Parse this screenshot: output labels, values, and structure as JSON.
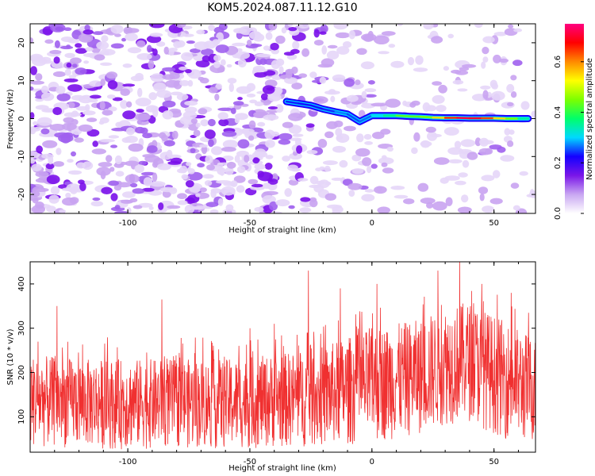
{
  "title": "KOM5.2024.087.11.12.G10",
  "chart_data": [
    {
      "type": "heatmap",
      "xlabel": "Height of straight line (km)",
      "ylabel": "Frequency (Hz)",
      "xlim": [
        -140,
        67
      ],
      "ylim": [
        -25,
        25
      ],
      "xticks": [
        -100,
        -50,
        0,
        50
      ],
      "yticks": [
        -20,
        -10,
        0,
        10,
        20
      ],
      "colorbar": {
        "label": "Normalized spectral amplitude",
        "range": [
          0.0,
          0.75
        ],
        "ticks": [
          0.0,
          0.2,
          0.4,
          0.6
        ],
        "colors": [
          "#ffffff",
          "#c9a7f2",
          "#7a16e8",
          "#1400ff",
          "#00d9ff",
          "#00ff6a",
          "#7cff00",
          "#ffff00",
          "#ff8a00",
          "#ff0000",
          "#ff0080"
        ]
      },
      "signal_track": [
        {
          "x": -35,
          "y": 4.5,
          "v": 0.25
        },
        {
          "x": -30,
          "y": 4.0,
          "v": 0.22
        },
        {
          "x": -25,
          "y": 3.5,
          "v": 0.24
        },
        {
          "x": -20,
          "y": 2.5,
          "v": 0.22
        },
        {
          "x": -15,
          "y": 1.8,
          "v": 0.26
        },
        {
          "x": -10,
          "y": 1.2,
          "v": 0.28
        },
        {
          "x": -5,
          "y": -0.8,
          "v": 0.22
        },
        {
          "x": 0,
          "y": 0.8,
          "v": 0.3
        },
        {
          "x": 5,
          "y": 0.8,
          "v": 0.32
        },
        {
          "x": 10,
          "y": 0.8,
          "v": 0.4
        },
        {
          "x": 15,
          "y": 0.6,
          "v": 0.45
        },
        {
          "x": 20,
          "y": 0.5,
          "v": 0.4
        },
        {
          "x": 25,
          "y": 0.3,
          "v": 0.5
        },
        {
          "x": 30,
          "y": 0.2,
          "v": 0.6
        },
        {
          "x": 35,
          "y": 0.2,
          "v": 0.7
        },
        {
          "x": 40,
          "y": 0.1,
          "v": 0.72
        },
        {
          "x": 45,
          "y": 0.1,
          "v": 0.68
        },
        {
          "x": 50,
          "y": 0.1,
          "v": 0.6
        },
        {
          "x": 55,
          "y": 0.0,
          "v": 0.5
        },
        {
          "x": 60,
          "y": 0.0,
          "v": 0.4
        },
        {
          "x": 64,
          "y": 0.0,
          "v": 0.3
        }
      ]
    },
    {
      "type": "line",
      "xlabel": "Height of straight line (km)",
      "ylabel": "SNR (10 * v/v)",
      "xlim": [
        -140,
        67
      ],
      "ylim": [
        20,
        450
      ],
      "xticks": [
        -100,
        -50,
        0,
        50
      ],
      "yticks": [
        100,
        200,
        300,
        400
      ],
      "series": [
        {
          "color": "#f03030",
          "envelope": [
            {
              "x": -140,
              "low": 30,
              "high": 240
            },
            {
              "x": -120,
              "low": 30,
              "high": 230
            },
            {
              "x": -100,
              "low": 25,
              "high": 230
            },
            {
              "x": -80,
              "low": 30,
              "high": 230
            },
            {
              "x": -60,
              "low": 25,
              "high": 230
            },
            {
              "x": -40,
              "low": 30,
              "high": 240
            },
            {
              "x": -20,
              "low": 30,
              "high": 260
            },
            {
              "x": 0,
              "low": 40,
              "high": 300
            },
            {
              "x": 20,
              "low": 60,
              "high": 320
            },
            {
              "x": 30,
              "low": 80,
              "high": 350
            },
            {
              "x": 40,
              "low": 90,
              "high": 360
            },
            {
              "x": 50,
              "low": 60,
              "high": 330
            },
            {
              "x": 60,
              "low": 40,
              "high": 300
            },
            {
              "x": 67,
              "low": 40,
              "high": 280
            }
          ],
          "peaks": [
            {
              "x": -129,
              "y": 350
            },
            {
              "x": -86,
              "y": 365
            },
            {
              "x": -50,
              "y": 300
            },
            {
              "x": -40,
              "y": 310
            },
            {
              "x": -26,
              "y": 430
            },
            {
              "x": -13,
              "y": 390
            },
            {
              "x": -1,
              "y": 300
            },
            {
              "x": 2,
              "y": 400
            },
            {
              "x": 27,
              "y": 430
            },
            {
              "x": 36,
              "y": 450
            },
            {
              "x": 45,
              "y": 400
            },
            {
              "x": 57,
              "y": 380
            }
          ]
        }
      ]
    }
  ]
}
